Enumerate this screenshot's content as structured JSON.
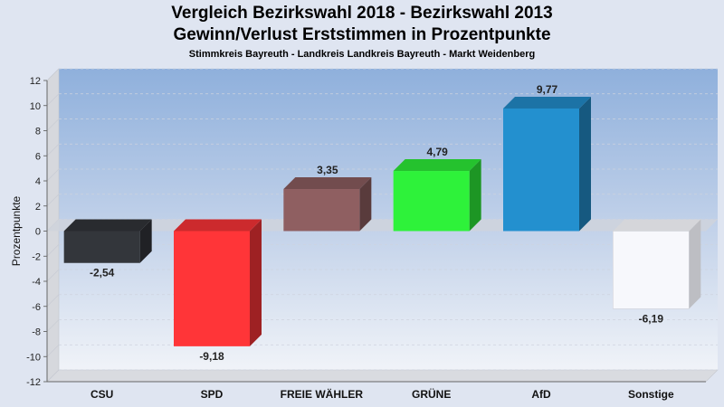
{
  "chart_data": {
    "type": "bar",
    "title": "Vergleich Bezirkswahl 2018 - Bezirkswahl 2013",
    "subtitle_line": "Gewinn/Verlust Erststimmen in Prozentpunkte",
    "subtitle": "Stimmkreis Bayreuth - Landkreis Landkreis Bayreuth - Markt Weidenberg",
    "ylabel": "Prozentpunkte",
    "xlabel": "",
    "ylim": [
      -12,
      12
    ],
    "yticks": [
      -12,
      -10,
      -8,
      -6,
      -4,
      -2,
      0,
      2,
      4,
      6,
      8,
      10,
      12
    ],
    "categories": [
      "CSU",
      "SPD",
      "FREIE WÄHLER",
      "GRÜNE",
      "AfD",
      "Sonstige"
    ],
    "values": [
      -2.54,
      -9.18,
      3.35,
      4.79,
      9.77,
      -6.19
    ],
    "value_labels": [
      "-2,54",
      "-9,18",
      "3,35",
      "4,79",
      "9,77",
      "-6,19"
    ],
    "colors": [
      "#33363b",
      "#ff3538",
      "#8f5f61",
      "#2ef23a",
      "#2390cf",
      "#f7f8fc"
    ],
    "grid": true,
    "legend": "none"
  }
}
